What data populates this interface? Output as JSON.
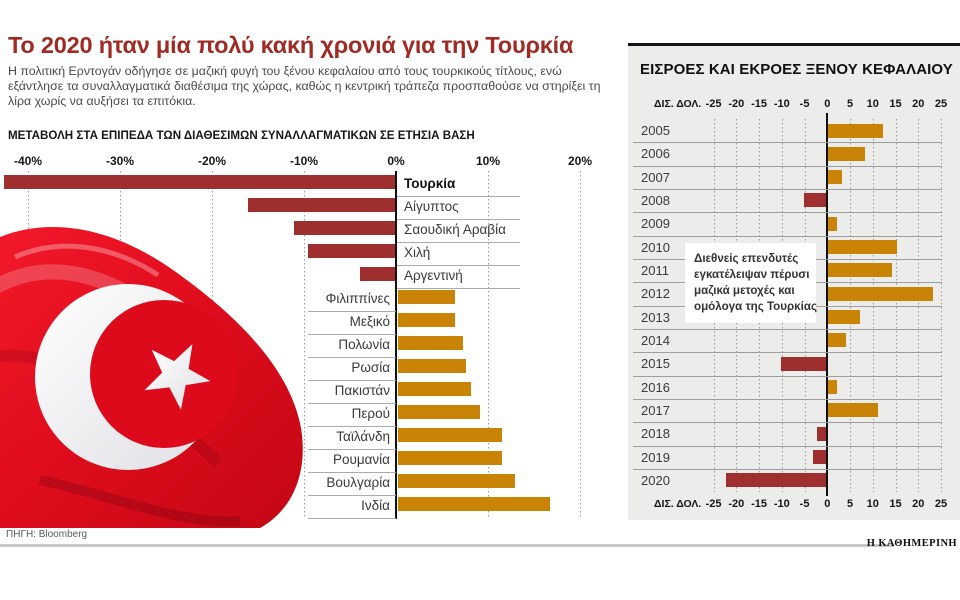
{
  "header": {
    "title": "Το 2020 ήταν μία πολύ κακή χρονιά για την Τουρκία",
    "subtitle": "Η πολιτική Ερντογάν οδήγησε σε μαζική φυγή του ξένου κεφαλαίου από τους τουρκικούς τίτλους, ενώ εξάντλησε τα συναλλαγματικά διαθέσιμα της χώρας, καθώς η κεντρική τράπεζα προσπαθούσε να στηρίξει τη λίρα χωρίς να αυξήσει τα επιτόκια."
  },
  "colors": {
    "headline": "#a02a24",
    "negative_bar": "#9f2e2e",
    "positive_bar": "#c98405",
    "panel_bg": "#ececea",
    "flag_red": "#e00d1d"
  },
  "chart_data": [
    {
      "type": "bar",
      "orientation": "horizontal",
      "title": "ΜΕΤΑΒΟΛΗ ΣΤΑ ΕΠΙΠΕΔΑ ΤΩΝ ΔΙΑΘΕΣΙΜΩΝ ΣΥΝΑΛΛΑΓΜΑΤΙΚΩΝ ΣΕ ΕΤΗΣΙΑ ΒΑΣΗ",
      "unit": "%",
      "xlim": [
        -45,
        22
      ],
      "ticks": [
        -40,
        -30,
        -20,
        -10,
        0,
        10,
        20
      ],
      "tick_labels": [
        "-40%",
        "-30%",
        "-20%",
        "-10%",
        "0%",
        "10%",
        "20%"
      ],
      "categories": [
        "Τουρκία",
        "Αίγυπτος",
        "Σαουδική Αραβία",
        "Χιλή",
        "Αργεντινή",
        "Φιλιππίνες",
        "Μεξικό",
        "Πολωνία",
        "Ρωσία",
        "Πακιστάν",
        "Περού",
        "Ταϊλάνδη",
        "Ρουμανία",
        "Βουλγαρία",
        "Ινδία"
      ],
      "values": [
        -42.5,
        -16,
        -11,
        -9.5,
        -3.8,
        6.2,
        6.2,
        7.1,
        7.4,
        8,
        9,
        11.4,
        11.4,
        12.8,
        16.6
      ],
      "highlight_bold": "Τουρκία",
      "grid": "dotted-vertical",
      "legend": "none"
    },
    {
      "type": "bar",
      "orientation": "horizontal",
      "title": "ΕΙΣΡΟΕΣ ΚΑΙ ΕΚΡΟΕΣ ΞΕΝΟΥ ΚΕΦΑΛΑΙΟΥ",
      "unit_label": "ΔΙΣ. ΔΟΛ.",
      "xlim": [
        -25,
        25
      ],
      "ticks": [
        -25,
        -20,
        -15,
        -10,
        -5,
        0,
        5,
        10,
        15,
        20,
        25
      ],
      "categories": [
        "2005",
        "2006",
        "2007",
        "2008",
        "2009",
        "2010",
        "2011",
        "2012",
        "2013",
        "2014",
        "2015",
        "2016",
        "2017",
        "2018",
        "2019",
        "2020"
      ],
      "values": [
        12,
        8,
        3,
        -5,
        2,
        15,
        14,
        23,
        7,
        4,
        -10,
        2,
        11,
        -2,
        -3,
        -22
      ],
      "annotation_lines": [
        "Διεθνείς επενδυτές",
        "εγκατέλειψαν πέρυσι",
        "μαζικά μετοχές και",
        "ομόλογα της Τουρκίας"
      ],
      "grid": "dotted-vertical",
      "legend": "none"
    }
  ],
  "footer": {
    "source": "ΠΗΓΗ: Bloomberg",
    "brand": "Η ΚΑΘΗΜΕΡΙΝΗ"
  }
}
